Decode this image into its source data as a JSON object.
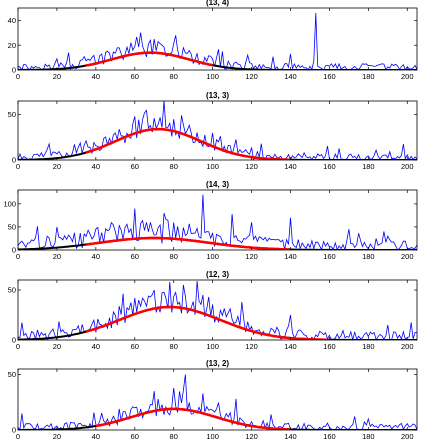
{
  "chart_data": [
    {
      "type": "line",
      "title": "(13, 4)",
      "xlim": [
        0,
        205
      ],
      "ylim": [
        0,
        50
      ],
      "xticks": [
        0,
        20,
        40,
        60,
        80,
        100,
        120,
        140,
        160,
        180,
        200
      ],
      "yticks": [
        0,
        20,
        40
      ],
      "grid": false,
      "series": [
        {
          "role": "observed",
          "color": "#0000ff",
          "style": "noisy",
          "x_range": [
            0,
            205
          ],
          "gauss_peak": 14,
          "gauss_mean": 68,
          "gauss_sd": 20,
          "noise": 6,
          "baseline": 2,
          "spikes": [
            [
              153,
              46
            ],
            [
              68,
              24
            ],
            [
              58,
              22
            ],
            [
              74,
              20
            ],
            [
              105,
              15
            ],
            [
              118,
              12
            ],
            [
              20,
              9
            ],
            [
              85,
              18
            ]
          ]
        },
        {
          "role": "fit",
          "color": "#ff0000",
          "style": "gaussian",
          "peak": 14,
          "mean": 68,
          "sd": 20,
          "x_range": [
            35,
            100
          ]
        },
        {
          "role": "baseline",
          "color": "#000000",
          "style": "gaussian",
          "peak": 14,
          "mean": 68,
          "sd": 20,
          "x_range": [
            0,
            205
          ]
        }
      ]
    },
    {
      "type": "line",
      "title": "(13, 3)",
      "xlim": [
        0,
        205
      ],
      "ylim": [
        0,
        65
      ],
      "xticks": [
        0,
        20,
        40,
        60,
        80,
        100,
        120,
        140,
        160,
        180,
        200
      ],
      "yticks": [
        0,
        50
      ],
      "grid": false,
      "series": [
        {
          "role": "observed",
          "color": "#0000ff",
          "style": "noisy",
          "x_range": [
            0,
            205
          ],
          "gauss_peak": 34,
          "gauss_mean": 72,
          "gauss_sd": 22,
          "noise": 9,
          "baseline": 2,
          "spikes": [
            [
              75,
              65
            ],
            [
              60,
              48
            ],
            [
              65,
              52
            ],
            [
              80,
              45
            ],
            [
              100,
              30
            ],
            [
              125,
              18
            ],
            [
              8,
              6
            ]
          ]
        },
        {
          "role": "fit",
          "color": "#ff0000",
          "style": "gaussian",
          "peak": 34,
          "mean": 72,
          "sd": 22,
          "x_range": [
            35,
            140
          ]
        },
        {
          "role": "baseline",
          "color": "#000000",
          "style": "gaussian",
          "peak": 34,
          "mean": 72,
          "sd": 22,
          "x_range": [
            0,
            205
          ]
        }
      ]
    },
    {
      "type": "line",
      "title": "(14, 3)",
      "xlim": [
        0,
        205
      ],
      "ylim": [
        0,
        130
      ],
      "xticks": [
        0,
        20,
        40,
        60,
        80,
        100,
        120,
        140,
        160,
        180,
        200
      ],
      "yticks": [
        0,
        50,
        100
      ],
      "grid": false,
      "series": [
        {
          "role": "observed",
          "color": "#0000ff",
          "style": "noisy",
          "x_range": [
            0,
            205
          ],
          "gauss_peak": 26,
          "gauss_mean": 70,
          "gauss_sd": 28,
          "noise": 22,
          "baseline": 10,
          "spikes": [
            [
              95,
              120
            ],
            [
              60,
              90
            ],
            [
              75,
              80
            ],
            [
              110,
              78
            ],
            [
              140,
              70
            ],
            [
              20,
              50
            ],
            [
              170,
              45
            ],
            [
              120,
              60
            ],
            [
              50,
              40
            ],
            [
              188,
              40
            ]
          ]
        },
        {
          "role": "fit",
          "color": "#ff0000",
          "style": "gaussian",
          "peak": 26,
          "mean": 70,
          "sd": 28,
          "x_range": [
            35,
            140
          ]
        },
        {
          "role": "baseline",
          "color": "#000000",
          "style": "gaussian",
          "peak": 26,
          "mean": 70,
          "sd": 28,
          "x_range": [
            0,
            205
          ]
        }
      ]
    },
    {
      "type": "line",
      "title": "(12, 3)",
      "xlim": [
        0,
        205
      ],
      "ylim": [
        0,
        60
      ],
      "xticks": [
        0,
        20,
        40,
        60,
        80,
        100,
        120,
        140,
        160,
        180,
        200
      ],
      "yticks": [
        0,
        50
      ],
      "grid": false,
      "series": [
        {
          "role": "observed",
          "color": "#0000ff",
          "style": "noisy",
          "x_range": [
            0,
            205
          ],
          "gauss_peak": 33,
          "gauss_mean": 78,
          "gauss_sd": 26,
          "noise": 10,
          "baseline": 3,
          "spikes": [
            [
              78,
              58
            ],
            [
              85,
              55
            ],
            [
              95,
              45
            ],
            [
              70,
              50
            ],
            [
              115,
              38
            ],
            [
              140,
              25
            ],
            [
              60,
              42
            ],
            [
              10,
              10
            ],
            [
              190,
              15
            ]
          ]
        },
        {
          "role": "fit",
          "color": "#ff0000",
          "style": "gaussian",
          "peak": 33,
          "mean": 78,
          "sd": 26,
          "x_range": [
            35,
            160
          ]
        },
        {
          "role": "baseline",
          "color": "#000000",
          "style": "gaussian",
          "peak": 33,
          "mean": 78,
          "sd": 26,
          "x_range": [
            0,
            205
          ]
        }
      ]
    },
    {
      "type": "line",
      "title": "(13, 2)",
      "xlim": [
        0,
        205
      ],
      "ylim": [
        0,
        55
      ],
      "xticks": [
        0,
        20,
        40,
        60,
        80,
        100,
        120,
        140,
        160,
        180,
        200
      ],
      "yticks": [
        0,
        50
      ],
      "grid": false,
      "series": [
        {
          "role": "observed",
          "color": "#0000ff",
          "style": "noisy",
          "x_range": [
            0,
            205
          ],
          "gauss_peak": 19,
          "gauss_mean": 80,
          "gauss_sd": 22,
          "noise": 7,
          "baseline": 2,
          "spikes": [
            [
              86,
              50
            ],
            [
              70,
              35
            ],
            [
              95,
              33
            ],
            [
              112,
              28
            ],
            [
              2,
              15
            ],
            [
              130,
              14
            ],
            [
              180,
              10
            ],
            [
              60,
              20
            ]
          ]
        },
        {
          "role": "fit",
          "color": "#ff0000",
          "style": "gaussian",
          "peak": 19,
          "mean": 80,
          "sd": 22,
          "x_range": [
            40,
            140
          ]
        },
        {
          "role": "baseline",
          "color": "#000000",
          "style": "gaussian",
          "peak": 19,
          "mean": 80,
          "sd": 22,
          "x_range": [
            0,
            205
          ]
        }
      ]
    }
  ]
}
